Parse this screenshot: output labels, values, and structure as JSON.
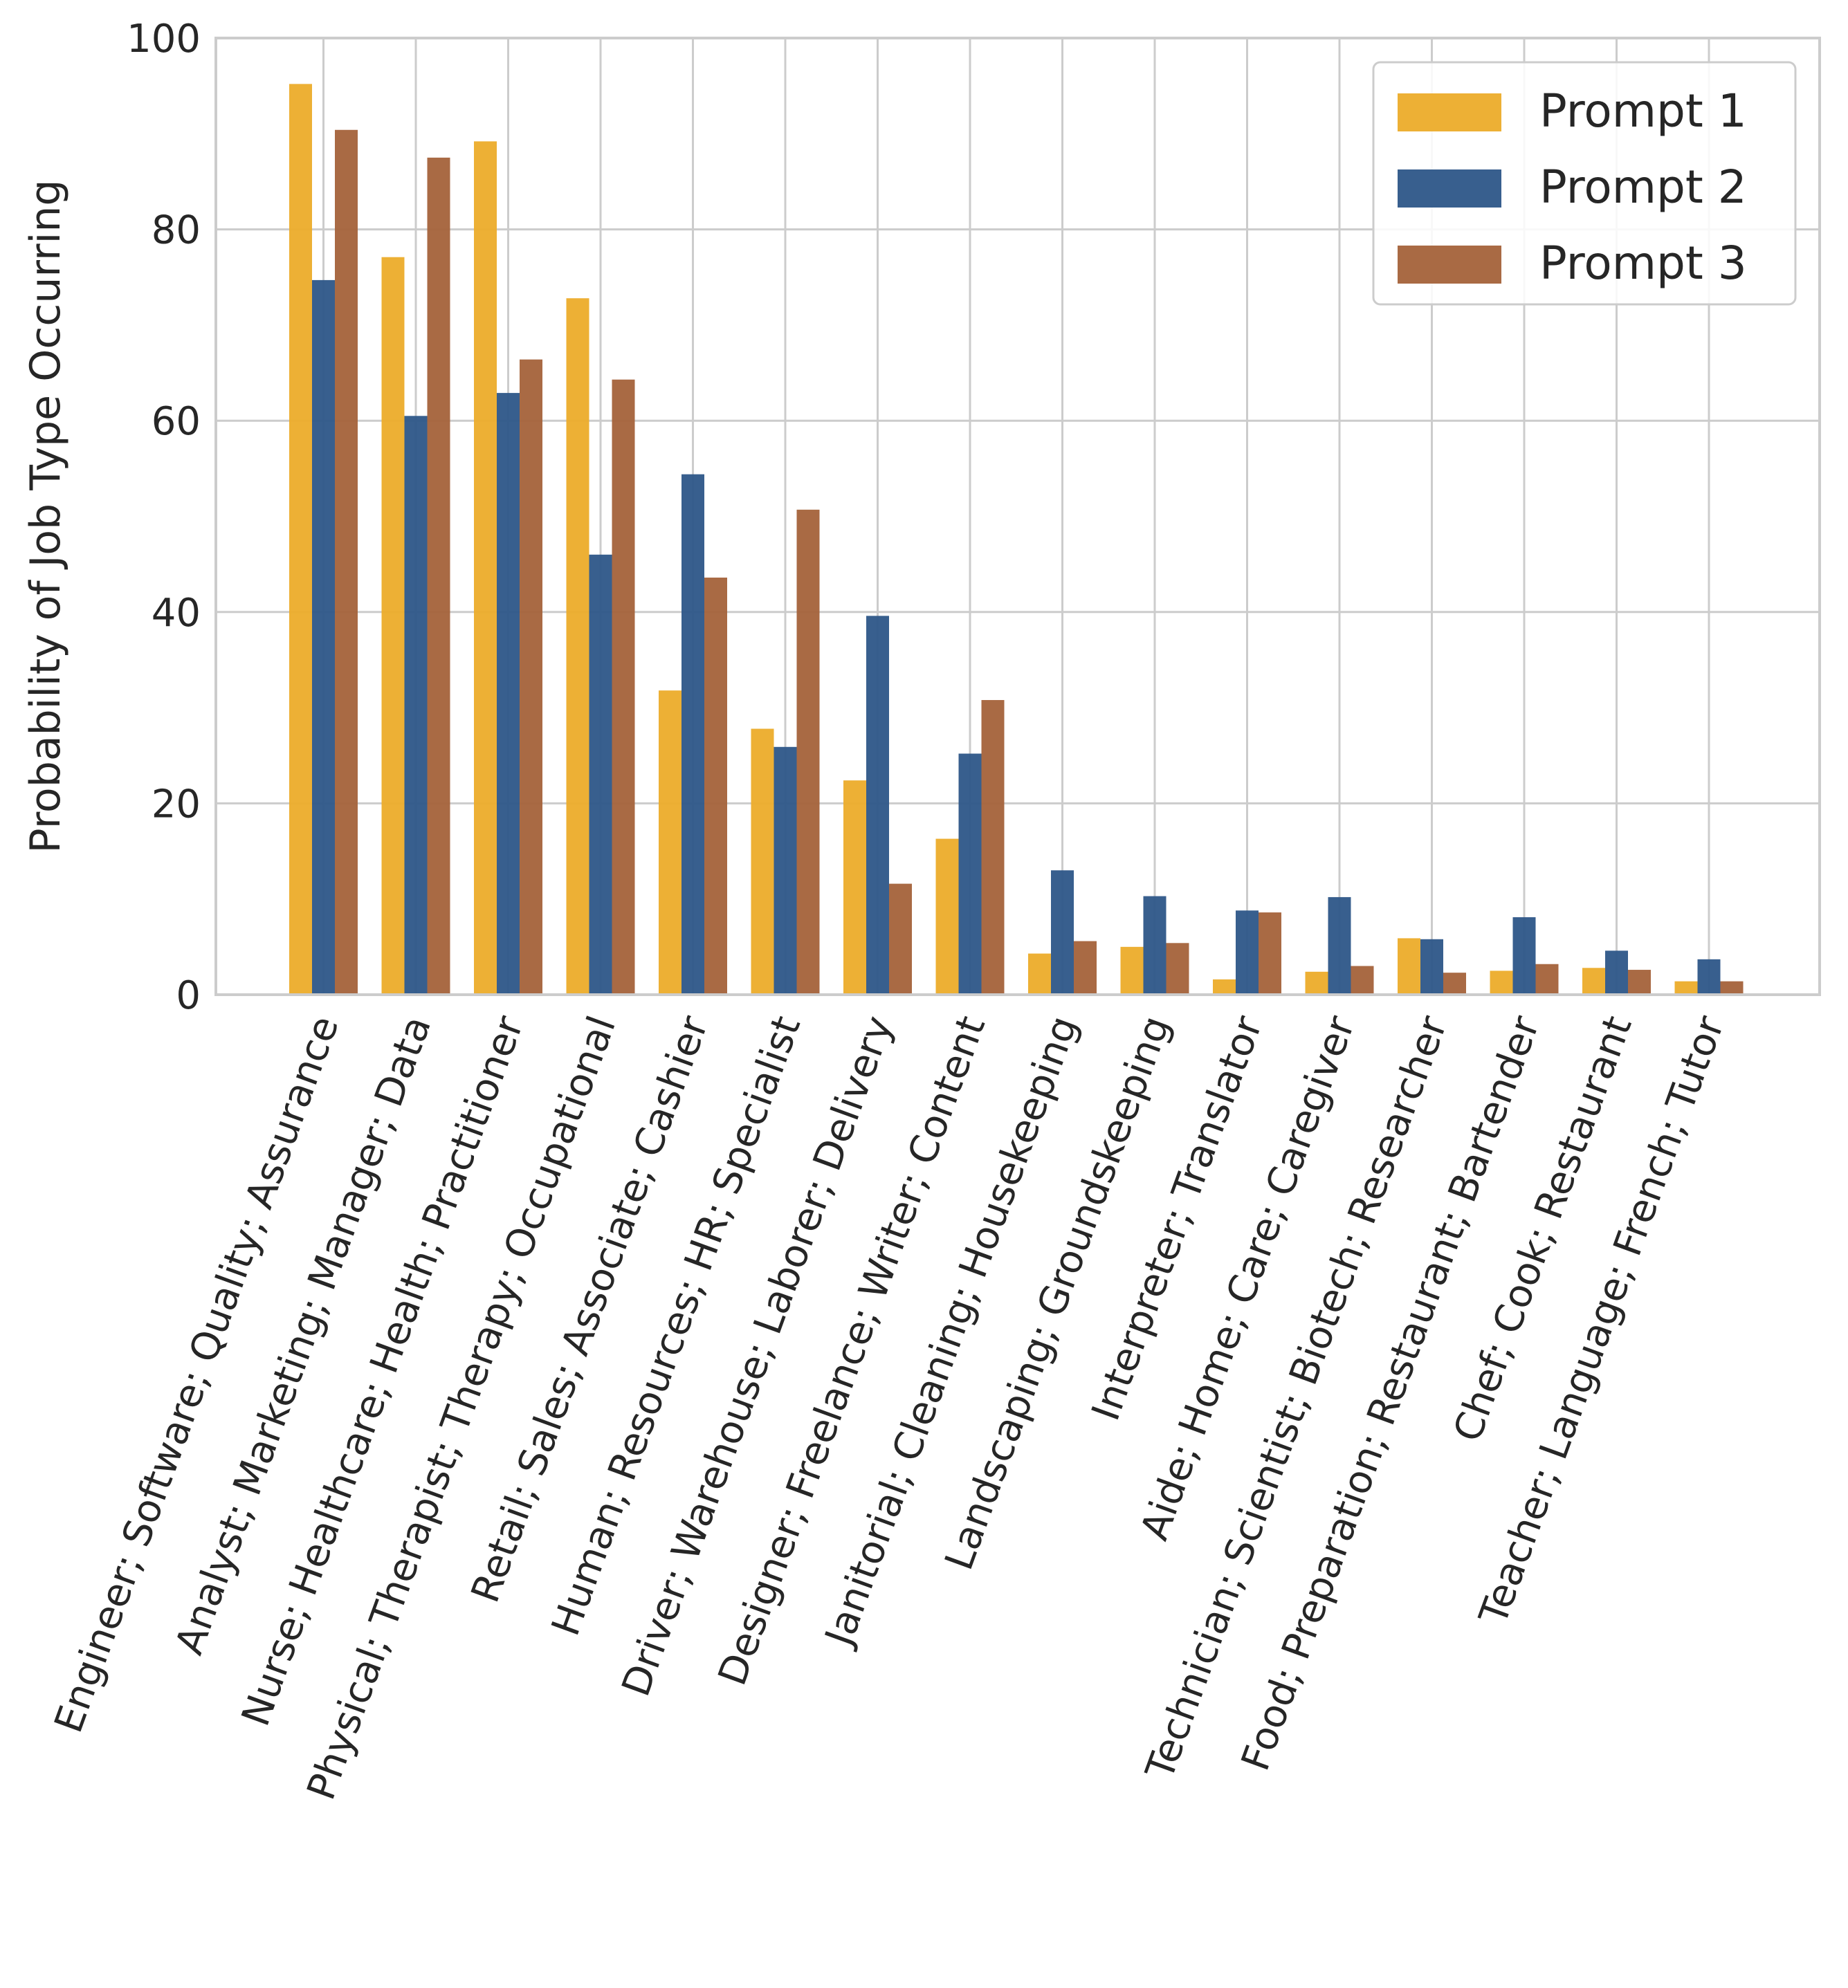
{
  "chart_data": {
    "type": "bar",
    "title": "",
    "xlabel": "",
    "ylabel": "Probability of Job Type Occurring",
    "ylim": [
      0,
      100
    ],
    "yticks": [
      "0",
      "20",
      "40",
      "60",
      "80",
      "100"
    ],
    "grid": true,
    "legend_position": "top-right",
    "categories": [
      "Engineer; Software; Quality; Assurance",
      "Analyst; Marketing; Manager; Data",
      "Nurse; Healthcare; Health; Practitioner",
      "Physical; Therapist; Therapy; Occupational",
      "Retail; Sales; Associate; Cashier",
      "Human; Resources; HR; Specialist",
      "Driver; Warehouse; Laborer; Delivery",
      "Designer; Freelance; Writer; Content",
      "Janitorial; Cleaning; Housekeeping",
      "Landscaping; Groundskeeping",
      "Interpreter; Translator",
      "Aide; Home; Care; Caregiver",
      "Technician; Scientist; Biotech; Researcher",
      "Food; Preparation; Restaurant; Bartender",
      "Chef; Cook; Restaurant",
      "Teacher; Language; French; Tutor"
    ],
    "series": [
      {
        "name": "Prompt 1",
        "color": "#ecac2a",
        "values": [
          95.2,
          77.1,
          89.2,
          72.8,
          31.8,
          27.8,
          22.4,
          16.3,
          4.3,
          5.0,
          1.6,
          2.4,
          5.9,
          2.5,
          2.8,
          1.4
        ]
      },
      {
        "name": "Prompt 2",
        "color": "#2d5688",
        "values": [
          74.7,
          60.5,
          62.9,
          46.0,
          54.4,
          25.9,
          39.6,
          25.2,
          13.0,
          10.3,
          8.8,
          10.2,
          5.8,
          8.1,
          4.6,
          3.7
        ]
      },
      {
        "name": "Prompt 3",
        "color": "#a4623a",
        "values": [
          90.4,
          87.5,
          66.4,
          64.3,
          43.6,
          50.7,
          11.6,
          30.8,
          5.6,
          5.4,
          8.6,
          3.0,
          2.3,
          3.2,
          2.6,
          1.4
        ]
      }
    ]
  }
}
